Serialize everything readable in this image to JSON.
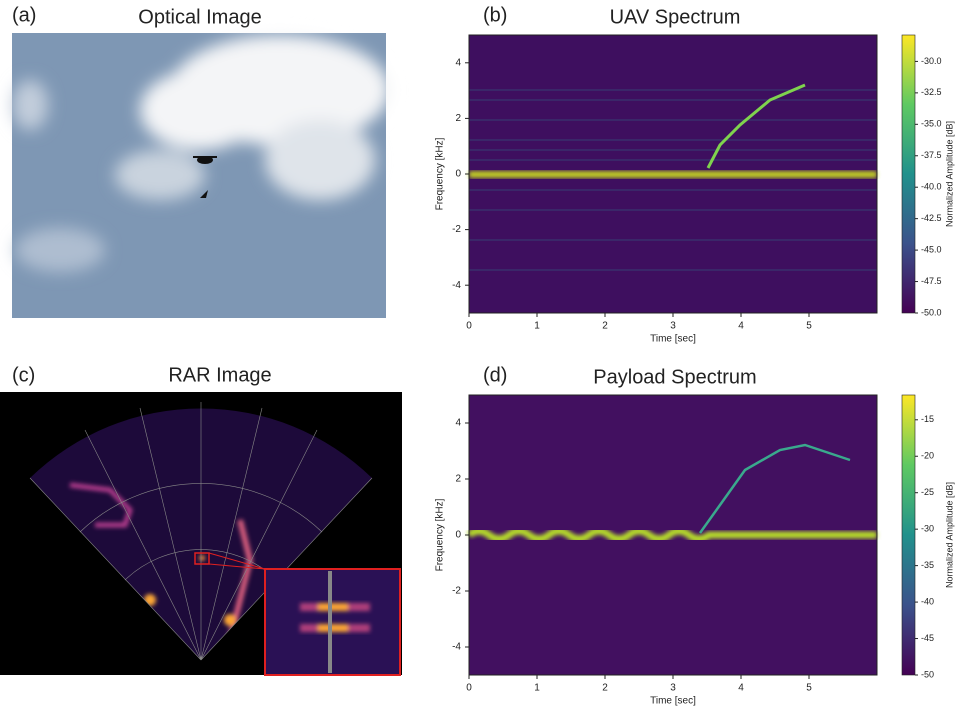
{
  "figure": {
    "panels": [
      {
        "label": "(a)",
        "title": "Optical Image"
      },
      {
        "label": "(c)",
        "title": "RAR Image"
      }
    ]
  },
  "chart_data": [
    {
      "type": "spectrogram",
      "label": "(b)",
      "title": "UAV Spectrum",
      "x_label": "Time [sec]",
      "y_label": "Frequency [kHz]",
      "xlim": [
        0,
        6
      ],
      "ylim": [
        -5,
        5
      ],
      "xticks": [
        0,
        1,
        2,
        3,
        4,
        5
      ],
      "yticks": [
        -4,
        -2,
        0,
        2,
        4
      ],
      "colorbar_label": "Normalized Amplitude [dB]",
      "clim": [
        -50,
        -27.9
      ],
      "cticks": [
        {
          "value": -50,
          "label": "-50.0"
        },
        {
          "value": -47.5,
          "label": "-47.5"
        },
        {
          "value": -45,
          "label": "-45.0"
        },
        {
          "value": -42.5,
          "label": "-42.5"
        },
        {
          "value": -40,
          "label": "-40.0"
        },
        {
          "value": -37.5,
          "label": "-37.5"
        },
        {
          "value": -35,
          "label": "-35.0"
        },
        {
          "value": -32.5,
          "label": "-32.5"
        },
        {
          "value": -30,
          "label": "-30.0"
        }
      ]
    },
    {
      "type": "spectrogram",
      "label": "(d)",
      "title": "Payload Spectrum",
      "x_label": "Time [sec]",
      "y_label": "Frequency [kHz]",
      "xlim": [
        0,
        6
      ],
      "ylim": [
        -5,
        5
      ],
      "xticks": [
        0,
        1,
        2,
        3,
        4,
        5
      ],
      "yticks": [
        -4,
        -2,
        0,
        2,
        4
      ],
      "colorbar_label": "Normalized Amplitude [dB]",
      "clim": [
        -50,
        -11.6
      ],
      "cticks": [
        -50,
        -45,
        -40,
        -35,
        -30,
        -25,
        -20,
        -15
      ]
    }
  ]
}
